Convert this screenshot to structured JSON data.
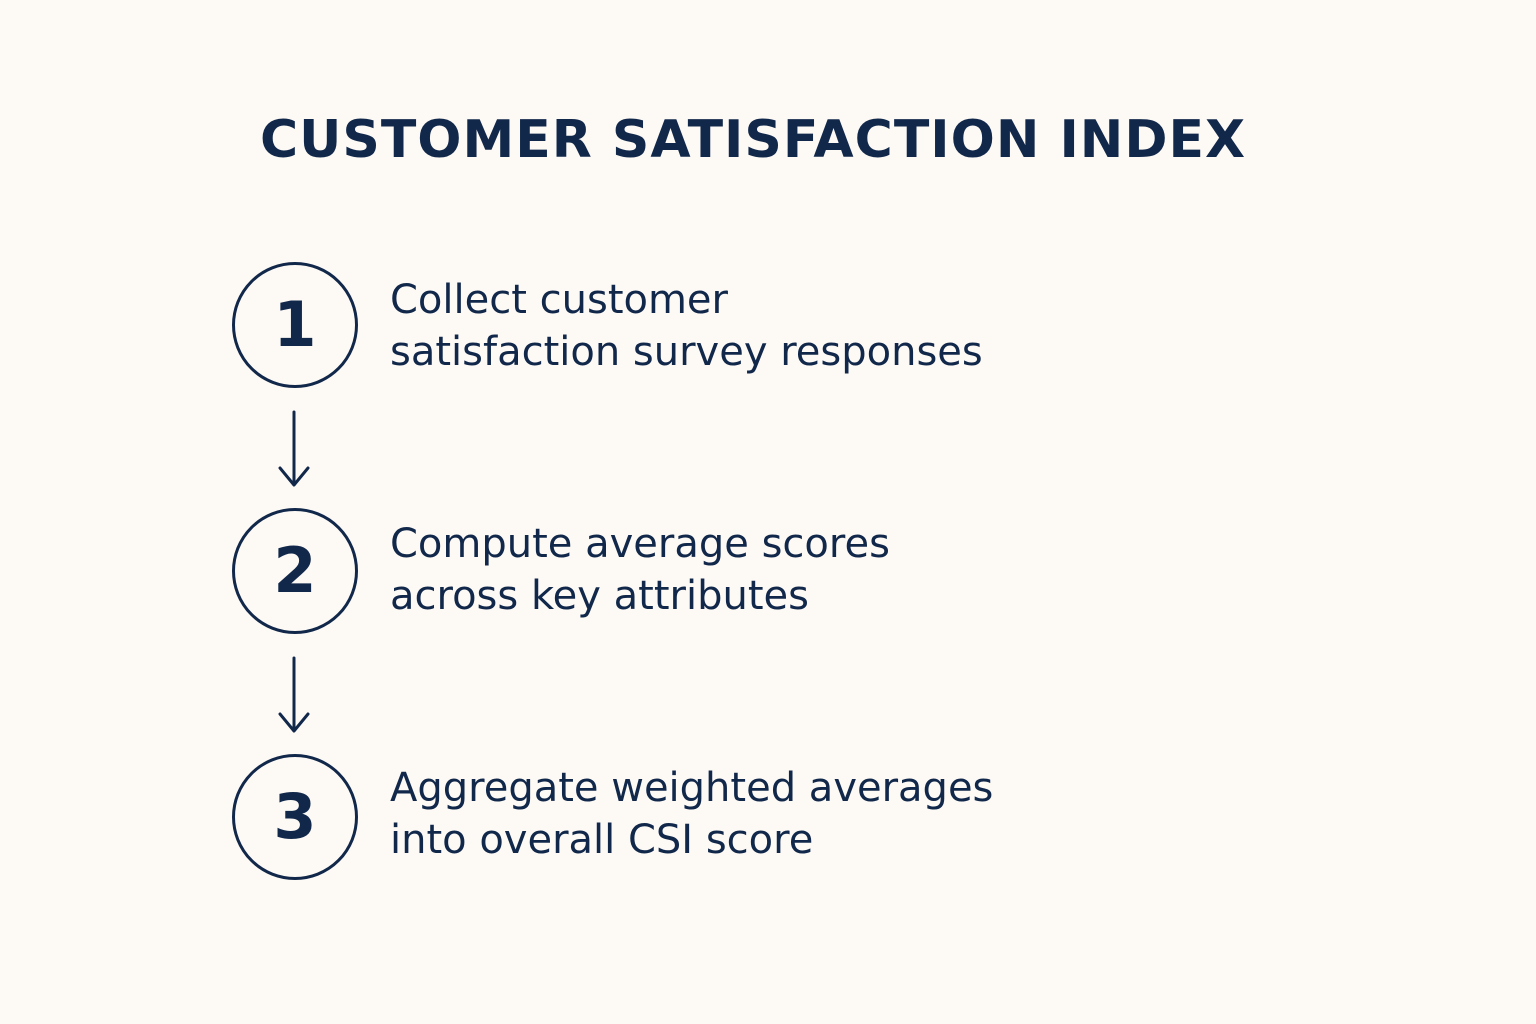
{
  "colors": {
    "background": "#fdfaf6",
    "ink": "#12284a"
  },
  "title": "CUSTOMER SATISFACTION INDEX",
  "steps": [
    {
      "number": "1",
      "lines": [
        "Collect customer",
        "satisfaction survey responses"
      ]
    },
    {
      "number": "2",
      "lines": [
        "Compute average scores",
        "across key attributes"
      ]
    },
    {
      "number": "3",
      "lines": [
        "Aggregate weighted averages",
        "into overall CSI score"
      ]
    }
  ],
  "connector_icon": "arrow-down-icon"
}
